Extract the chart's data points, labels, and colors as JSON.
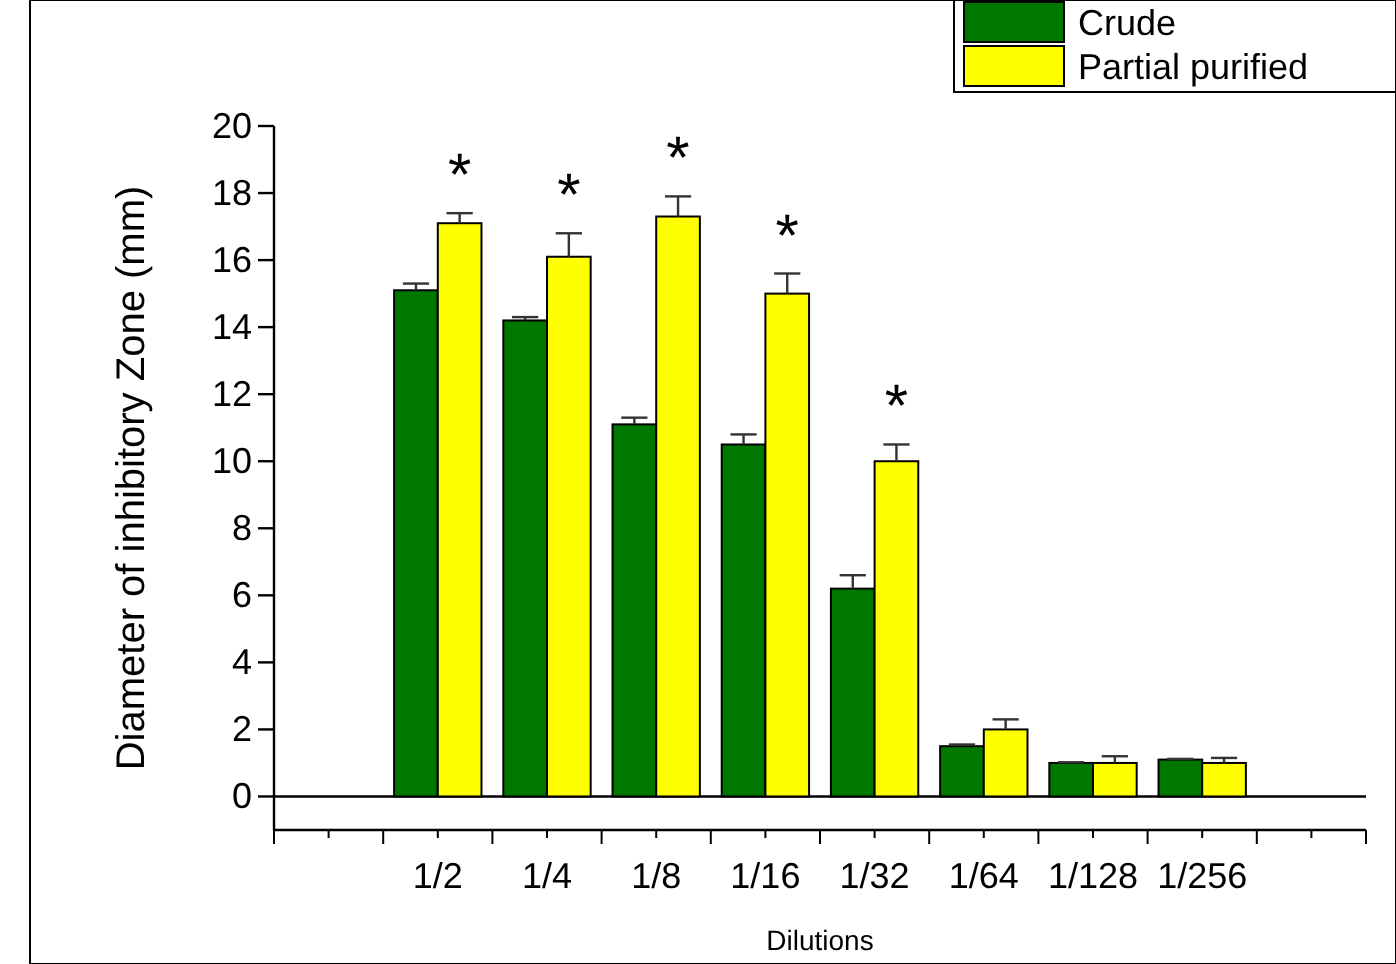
{
  "chart_data": {
    "type": "bar",
    "xlabel": "Dilutions",
    "ylabel": "Diameter of inhibitory Zone (mm)",
    "categories": [
      "1/2",
      "1/4",
      "1/8",
      "1/16",
      "1/32",
      "1/64",
      "1/128",
      "1/256"
    ],
    "series": [
      {
        "name": "Crude",
        "color": "#007800",
        "values": [
          15.1,
          14.2,
          11.1,
          10.5,
          6.2,
          1.5,
          1.0,
          1.1
        ],
        "errors": [
          [
            15.1,
            15.3
          ],
          [
            14.2,
            14.3
          ],
          [
            11.1,
            11.3
          ],
          [
            10.5,
            10.8
          ],
          [
            6.2,
            6.6
          ],
          [
            1.5,
            1.55
          ],
          [
            1.0,
            1.02
          ],
          [
            1.1,
            1.12
          ]
        ]
      },
      {
        "name": "Partial purified",
        "color": "#ffff00",
        "values": [
          17.1,
          16.1,
          17.3,
          15.0,
          10.0,
          2.0,
          1.0,
          1.0
        ],
        "errors": [
          [
            17.1,
            17.4
          ],
          [
            16.1,
            16.8
          ],
          [
            17.3,
            17.9
          ],
          [
            15.0,
            15.6
          ],
          [
            10.0,
            10.5
          ],
          [
            2.0,
            2.3
          ],
          [
            1.0,
            1.2
          ],
          [
            1.0,
            1.15
          ]
        ]
      }
    ],
    "ylim": [
      -1,
      20
    ],
    "yticks": [
      0,
      2,
      4,
      6,
      8,
      10,
      12,
      14,
      16,
      18,
      20
    ],
    "ref_lines": [
      {
        "axis": "y",
        "value": 0,
        "color": "#000000"
      }
    ],
    "annotations": [
      {
        "text": "*",
        "x": "1/2",
        "y": 17.1
      },
      {
        "text": "*",
        "x": "1/4",
        "y": 16.1
      },
      {
        "text": "*",
        "x": "1/8",
        "y": 17.3
      },
      {
        "text": "*",
        "x": "1/16",
        "y": 15.0
      },
      {
        "text": "*",
        "x": "1/32",
        "y": 10.0
      }
    ],
    "legend": "top right",
    "grid": false
  }
}
